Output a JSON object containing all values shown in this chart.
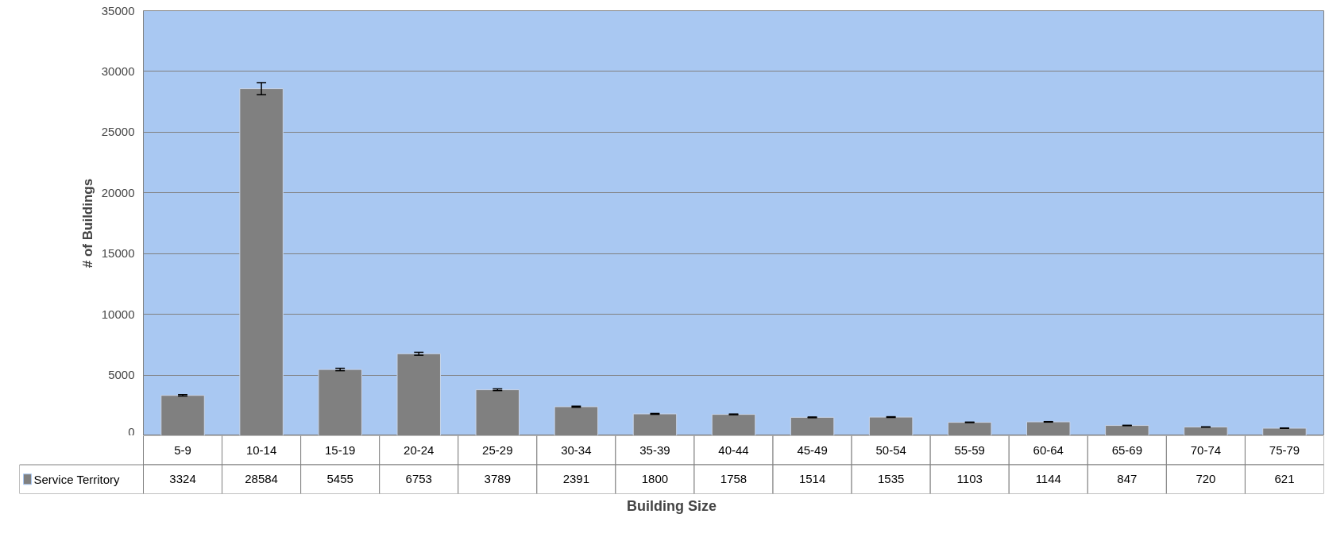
{
  "chart_data": {
    "type": "bar",
    "xlabel": "Building Size",
    "ylabel": "# of Buildings",
    "categories": [
      "5-9",
      "10-14",
      "15-19",
      "20-24",
      "25-29",
      "30-34",
      "35-39",
      "40-44",
      "45-49",
      "50-54",
      "55-59",
      "60-64",
      "65-69",
      "70-74",
      "75-79"
    ],
    "series": [
      {
        "name": "Service Territory",
        "color": "#808080",
        "values": [
          3324,
          28584,
          5455,
          6753,
          3789,
          2391,
          1800,
          1758,
          1514,
          1535,
          1103,
          1144,
          847,
          720,
          621
        ],
        "errors": [
          60,
          500,
          100,
          120,
          70,
          45,
          35,
          30,
          30,
          30,
          20,
          20,
          15,
          15,
          12
        ]
      }
    ],
    "ylim": [
      0,
      35000
    ],
    "yticks": [
      0,
      5000,
      10000,
      15000,
      20000,
      25000,
      30000,
      35000
    ],
    "grid": "y",
    "legend": "bottom left",
    "data_labels": true
  }
}
